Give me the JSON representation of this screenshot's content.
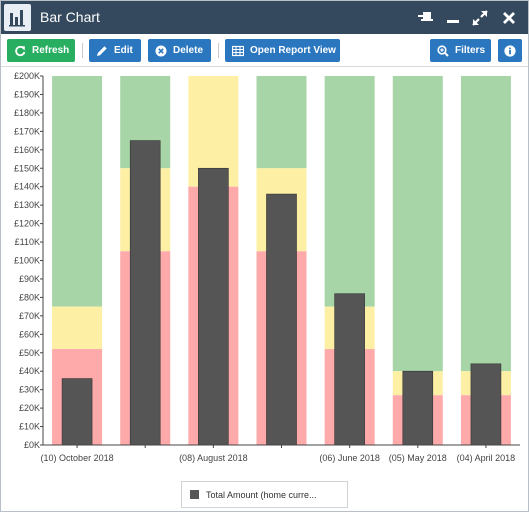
{
  "window": {
    "title": "Bar Chart",
    "icons": [
      "bar-chart-icon",
      "pin-icon",
      "minimize-icon",
      "expand-icon",
      "close-icon"
    ]
  },
  "toolbar": {
    "refresh_label": "Refresh",
    "edit_label": "Edit",
    "delete_label": "Delete",
    "open_report_label": "Open Report View",
    "filters_label": "Filters",
    "icons": [
      "refresh-icon",
      "pencil-icon",
      "delete-circle-icon",
      "table-grid-icon",
      "zoom-in-icon",
      "info-icon"
    ]
  },
  "colors": {
    "titlebar": "#34495e",
    "green_button": "#27ae60",
    "blue_button": "#2a77c0",
    "band_red": "#ffaaaa",
    "band_yellow": "#fdf0a4",
    "band_green": "#a8d5a8",
    "bar": "#555555"
  },
  "chart_data": {
    "type": "bar",
    "y_ticks": [
      "£0K",
      "£10K",
      "£20K",
      "£30K",
      "£40K",
      "£50K",
      "£60K",
      "£70K",
      "£80K",
      "£90K",
      "£100K",
      "£110K",
      "£120K",
      "£130K",
      "£140K",
      "£150K",
      "£160K",
      "£170K",
      "£180K",
      "£190K",
      "£200K"
    ],
    "ylim": [
      0,
      200
    ],
    "x_labels": [
      "(10) October 2018",
      "",
      "(08) August 2018",
      "",
      "(06) June 2018",
      "(05) May 2018",
      "(04) April 2018"
    ],
    "series": [
      {
        "name": "Total Amount (home curre...",
        "values": [
          36,
          165,
          150,
          136,
          82,
          40,
          44
        ]
      }
    ],
    "target_bands": [
      {
        "red": 52,
        "yellow": 75
      },
      {
        "red": 105,
        "yellow": 150
      },
      {
        "red": 140,
        "yellow": 200
      },
      {
        "red": 105,
        "yellow": 150
      },
      {
        "red": 52,
        "yellow": 75
      },
      {
        "red": 27,
        "yellow": 40
      },
      {
        "red": 27,
        "yellow": 40
      }
    ],
    "legend_position": "bottom",
    "grid": false
  },
  "legend": {
    "label": "Total Amount (home curre..."
  }
}
